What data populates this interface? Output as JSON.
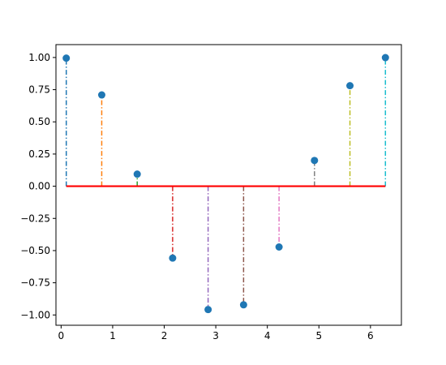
{
  "chart_data": {
    "type": "stem",
    "title": "",
    "xlabel": "",
    "ylabel": "",
    "xlim": [
      -0.1,
      6.6
    ],
    "ylim": [
      -1.08,
      1.1
    ],
    "grid": false,
    "x": [
      0.1,
      0.788,
      1.476,
      2.163,
      2.851,
      3.539,
      4.227,
      4.914,
      5.602,
      6.29
    ],
    "y": [
      0.995,
      0.709,
      0.094,
      -0.558,
      -0.958,
      -0.921,
      -0.472,
      0.2,
      0.781,
      0.999
    ],
    "baseline": 0,
    "marker_color": "#1f77b4",
    "baseline_color": "#ff0000",
    "stem_colors": [
      "#1f77b4",
      "#ff7f0e",
      "#2ca02c",
      "#d62728",
      "#9467bd",
      "#8c564b",
      "#e377c2",
      "#7f7f7f",
      "#bcbd22",
      "#17becf"
    ],
    "x_ticks": [
      0,
      1,
      2,
      3,
      4,
      5,
      6
    ],
    "x_tick_labels": [
      "0",
      "1",
      "2",
      "3",
      "4",
      "5",
      "6"
    ],
    "y_ticks": [
      1.0,
      0.75,
      0.5,
      0.25,
      0.0,
      -0.25,
      -0.5,
      -0.75,
      -1.0
    ],
    "y_tick_labels": [
      "1.00",
      "0.75",
      "0.50",
      "0.25",
      "0.00",
      "−0.25",
      "−0.50",
      "−0.75",
      "−1.00"
    ]
  }
}
